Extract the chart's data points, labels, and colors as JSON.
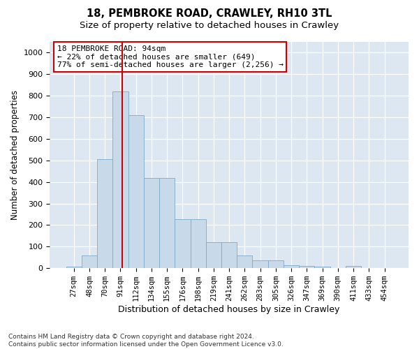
{
  "title1": "18, PEMBROKE ROAD, CRAWLEY, RH10 3TL",
  "title2": "Size of property relative to detached houses in Crawley",
  "xlabel": "Distribution of detached houses by size in Crawley",
  "ylabel": "Number of detached properties",
  "categories": [
    "27sqm",
    "48sqm",
    "70sqm",
    "91sqm",
    "112sqm",
    "134sqm",
    "155sqm",
    "176sqm",
    "198sqm",
    "219sqm",
    "241sqm",
    "262sqm",
    "283sqm",
    "305sqm",
    "326sqm",
    "347sqm",
    "369sqm",
    "390sqm",
    "411sqm",
    "433sqm",
    "454sqm"
  ],
  "values": [
    7,
    60,
    505,
    820,
    710,
    418,
    418,
    228,
    228,
    120,
    120,
    58,
    35,
    35,
    15,
    12,
    8,
    0,
    10,
    0,
    0
  ],
  "bar_color": "#c8d9ea",
  "bar_edge_color": "#7aaac8",
  "vline_color": "#cc0000",
  "vline_x": 3.13,
  "annotation_text": "18 PEMBROKE ROAD: 94sqm\n← 22% of detached houses are smaller (649)\n77% of semi-detached houses are larger (2,256) →",
  "annotation_box_facecolor": "#ffffff",
  "annotation_box_edgecolor": "#cc0000",
  "ylim": [
    0,
    1050
  ],
  "yticks": [
    0,
    100,
    200,
    300,
    400,
    500,
    600,
    700,
    800,
    900,
    1000
  ],
  "background_color": "#dde7f2",
  "footer_text": "Contains HM Land Registry data © Crown copyright and database right 2024.\nContains public sector information licensed under the Open Government Licence v3.0.",
  "title1_fontsize": 10.5,
  "title2_fontsize": 9.5,
  "tick_fontsize": 7.5,
  "xlabel_fontsize": 9,
  "ylabel_fontsize": 8.5,
  "annotation_fontsize": 8,
  "footer_fontsize": 6.5
}
